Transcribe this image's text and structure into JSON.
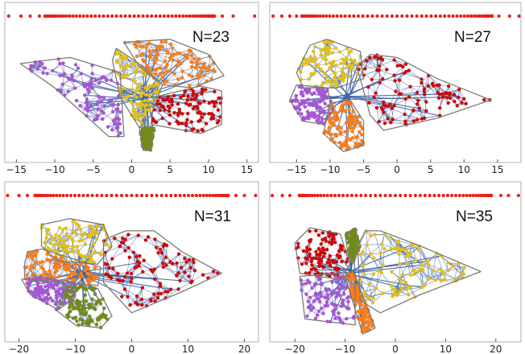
{
  "colors": {
    "edge": "#3b62a3",
    "hull": "#7a7a7a",
    "eigen": "#e8201b",
    "frame": "#b0b0b0",
    "purple": "#a855d4",
    "yellow": "#e3c017",
    "orange": "#ff7c14",
    "red": "#cc0a0a",
    "green": "#738a1a"
  },
  "chart_data": [
    {
      "type": "scatter",
      "label": "N=23",
      "xticks": [
        "-15",
        "-10",
        "-5",
        "0",
        "5",
        "10",
        "15"
      ],
      "xtick_values": [
        -15,
        -10,
        -5,
        0,
        5,
        10,
        15
      ],
      "xlim": [
        -16.5,
        16.5
      ],
      "ylim": [
        -10,
        10
      ],
      "eigenvalue_rows": {
        "outer": [
          -16.0,
          -14.4,
          -13.2,
          -12.0,
          11.8,
          13.2,
          16.0
        ],
        "dense": [
          -11.5,
          11.0
        ]
      },
      "series": [
        {
          "color_key": "purple",
          "hull": [
            [
              -14.5,
              5.5
            ],
            [
              -8,
              6.5
            ],
            [
              -1.5,
              4
            ],
            [
              -1,
              -6.5
            ],
            [
              -3,
              -6.5
            ],
            [
              -10,
              1.5
            ],
            [
              -14.5,
              5.5
            ]
          ]
        },
        {
          "color_key": "yellow",
          "hull": [
            [
              -2,
              8
            ],
            [
              1.5,
              5
            ],
            [
              4,
              2
            ],
            [
              2.5,
              -3
            ],
            [
              1,
              -5
            ],
            [
              -1.5,
              0
            ],
            [
              -2.5,
              6
            ]
          ]
        },
        {
          "color_key": "orange",
          "hull": [
            [
              -1,
              9
            ],
            [
              5,
              9.5
            ],
            [
              10,
              7
            ],
            [
              12,
              3.5
            ],
            [
              8,
              1.5
            ],
            [
              4,
              2
            ],
            [
              1,
              5
            ]
          ]
        },
        {
          "color_key": "red",
          "hull": [
            [
              3,
              0
            ],
            [
              9,
              1.8
            ],
            [
              11.7,
              1
            ],
            [
              11.7,
              -4.5
            ],
            [
              9,
              -6
            ],
            [
              2.5,
              -4.5
            ]
          ]
        },
        {
          "color_key": "green",
          "hull": [
            [
              1,
              -5
            ],
            [
              3,
              -5
            ],
            [
              2.5,
              -8.8
            ],
            [
              1.5,
              -8.8
            ]
          ]
        }
      ]
    },
    {
      "type": "scatter",
      "label": "N=27",
      "xticks": [
        "-15",
        "-10",
        "-5",
        "0",
        "5",
        "10",
        "15"
      ],
      "xtick_values": [
        -15,
        -10,
        -5,
        0,
        5,
        10,
        15
      ],
      "xlim": [
        -19,
        18.5
      ],
      "ylim": [
        -10,
        10
      ],
      "eigenvalue_rows": {
        "outer": [
          -18.5,
          -17.2,
          -16.0,
          -15.0,
          15.2,
          16.8,
          18.2
        ],
        "dense": [
          -14.5,
          14.5
        ]
      },
      "series": [
        {
          "color_key": "yellow",
          "hull": [
            [
              -15,
              4
            ],
            [
              -13,
              8.5
            ],
            [
              -10.5,
              9.5
            ],
            [
              -5.5,
              7.5
            ],
            [
              -5,
              3
            ],
            [
              -9,
              1.5
            ],
            [
              -14,
              1.5
            ]
          ]
        },
        {
          "color_key": "purple",
          "hull": [
            [
              -16,
              -0.5
            ],
            [
              -15,
              2
            ],
            [
              -10.5,
              1.5
            ],
            [
              -9.5,
              -2
            ],
            [
              -11,
              -4.5
            ],
            [
              -14,
              -4
            ]
          ]
        },
        {
          "color_key": "orange",
          "hull": [
            [
              -10,
              -1
            ],
            [
              -7,
              -0.5
            ],
            [
              -5,
              -4
            ],
            [
              -5,
              -8
            ],
            [
              -8,
              -9
            ],
            [
              -11,
              -6
            ]
          ]
        },
        {
          "color_key": "red",
          "hull": [
            [
              -6,
              5
            ],
            [
              -4,
              7
            ],
            [
              0,
              6.5
            ],
            [
              6,
              3
            ],
            [
              14,
              -0.5
            ],
            [
              6,
              -3.5
            ],
            [
              -2,
              -5.5
            ],
            [
              -4,
              -3
            ]
          ]
        }
      ]
    },
    {
      "type": "scatter",
      "label": "N=31",
      "xticks": [
        "-20",
        "-10",
        "0",
        "10",
        "20"
      ],
      "xtick_values": [
        -20,
        -10,
        0,
        10,
        20
      ],
      "xlim": [
        -22.5,
        22.5
      ],
      "ylim": [
        -10,
        10
      ],
      "eigenvalue_rows": {
        "outer": [
          -22.0,
          -20.0,
          -18.5,
          18.5,
          20.0,
          22.0
        ],
        "dense": [
          -17.5,
          17.5
        ]
      },
      "series": [
        {
          "color_key": "yellow",
          "hull": [
            [
              -16,
              8.5
            ],
            [
              -11,
              9.5
            ],
            [
              -5,
              8.5
            ],
            [
              -3.5,
              5
            ],
            [
              -6,
              2
            ],
            [
              -13,
              2.5
            ],
            [
              -16,
              5
            ]
          ]
        },
        {
          "color_key": "orange",
          "hull": [
            [
              -19,
              2
            ],
            [
              -18.5,
              4
            ],
            [
              -16,
              4.5
            ],
            [
              -5.5,
              1.5
            ],
            [
              -6,
              -1.5
            ],
            [
              -19,
              -0.5
            ]
          ]
        },
        {
          "color_key": "purple",
          "hull": [
            [
              -19.5,
              -0.5
            ],
            [
              -18,
              -3
            ],
            [
              -13,
              -5.5
            ],
            [
              -10,
              -3.5
            ],
            [
              -10,
              -1
            ],
            [
              -17.5,
              0
            ]
          ]
        },
        {
          "color_key": "green",
          "hull": [
            [
              -13.5,
              -5.5
            ],
            [
              -11,
              -1
            ],
            [
              -6,
              -2
            ],
            [
              -3.5,
              -6.5
            ],
            [
              -5.5,
              -8.5
            ],
            [
              -10,
              -8
            ]
          ]
        },
        {
          "color_key": "red",
          "hull": [
            [
              -5,
              6
            ],
            [
              -1,
              7.5
            ],
            [
              4,
              7.5
            ],
            [
              9,
              4
            ],
            [
              16,
              0.5
            ],
            [
              9,
              -2.5
            ],
            [
              0,
              -6
            ],
            [
              -5,
              -1
            ]
          ]
        }
      ]
    },
    {
      "type": "scatter",
      "label": "N=35",
      "xticks": [
        "-20",
        "-10",
        "0",
        "10",
        "20"
      ],
      "xtick_values": [
        -20,
        -10,
        0,
        10,
        20
      ],
      "xlim": [
        -25,
        25
      ],
      "ylim": [
        -10,
        10
      ],
      "eigenvalue_rows": {
        "outer": [
          -24.5,
          -22.5,
          -21.0,
          21.0,
          22.5,
          24.5
        ],
        "dense": [
          -19.5,
          19.5
        ]
      },
      "series": [
        {
          "color_key": "red",
          "hull": [
            [
              -20,
              5.5
            ],
            [
              -17,
              8
            ],
            [
              -11,
              7
            ],
            [
              -9,
              2
            ],
            [
              -11,
              -0.5
            ],
            [
              -19,
              0.5
            ]
          ]
        },
        {
          "color_key": "green",
          "hull": [
            [
              -10,
              7
            ],
            [
              -8,
              8
            ],
            [
              -7,
              5
            ],
            [
              -8.5,
              2
            ],
            [
              -9.5,
              4
            ]
          ]
        },
        {
          "color_key": "purple",
          "hull": [
            [
              -19,
              0
            ],
            [
              -11,
              0.5
            ],
            [
              -8,
              -1.5
            ],
            [
              -8,
              -8
            ],
            [
              -18,
              -7
            ]
          ]
        },
        {
          "color_key": "orange",
          "hull": [
            [
              -10,
              0
            ],
            [
              -8.5,
              1
            ],
            [
              -4,
              -8.5
            ],
            [
              -6.5,
              -9.5
            ]
          ]
        },
        {
          "color_key": "yellow",
          "hull": [
            [
              -7.5,
              5
            ],
            [
              -6,
              7.5
            ],
            [
              -3,
              7.5
            ],
            [
              5,
              5
            ],
            [
              17,
              0.8
            ],
            [
              5,
              -3
            ],
            [
              -3,
              -6
            ],
            [
              -7,
              -4
            ]
          ]
        }
      ]
    }
  ]
}
